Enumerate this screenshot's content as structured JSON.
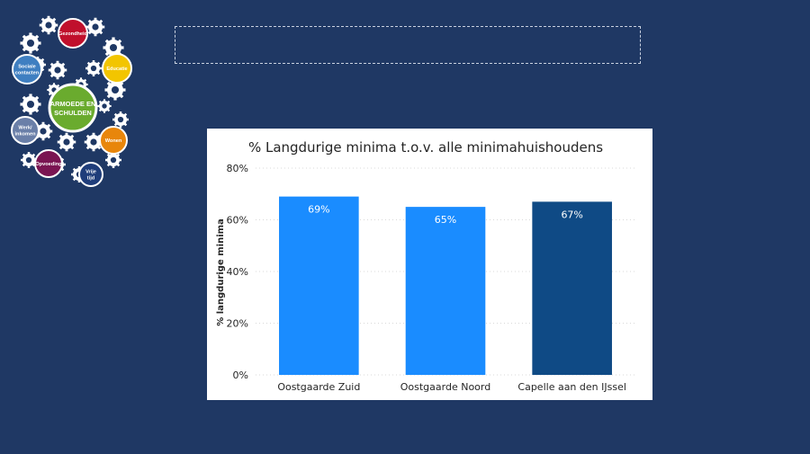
{
  "logo": {
    "center_line1": "ARMOEDE EN",
    "center_line2": "SCHULDEN",
    "items": [
      {
        "label": "Gezondheid",
        "color": "#c0102c"
      },
      {
        "label": "Educatie",
        "color": "#f2c500"
      },
      {
        "label": "Wonen",
        "color": "#e8860b"
      },
      {
        "label": "Vrije tijd",
        "color": "#1f3d7a"
      },
      {
        "label": "Opvoeding",
        "color": "#7a1552"
      },
      {
        "label": "Werk/ inkomen",
        "color": "#6a7fa8"
      },
      {
        "label": "Sociale contacten",
        "color": "#3f7fc1"
      }
    ],
    "center_color": "#6aab2e"
  },
  "chart_data": {
    "type": "bar",
    "title": "% Langdurige minima t.o.v. alle minimahuishoudens",
    "ylabel": "% langdurige minima",
    "xlabel": "",
    "categories": [
      "Oostgaarde Zuid",
      "Oostgaarde Noord",
      "Capelle aan den IJssel"
    ],
    "values": [
      69,
      65,
      67
    ],
    "data_labels": [
      "69%",
      "65%",
      "67%"
    ],
    "colors": [
      "#1a8cff",
      "#1a8cff",
      "#0f4a85"
    ],
    "ylim": [
      0,
      80
    ],
    "yticks": [
      0,
      20,
      40,
      60,
      80
    ],
    "ytick_labels": [
      "0%",
      "20%",
      "40%",
      "60%",
      "80%"
    ],
    "grid": true
  }
}
